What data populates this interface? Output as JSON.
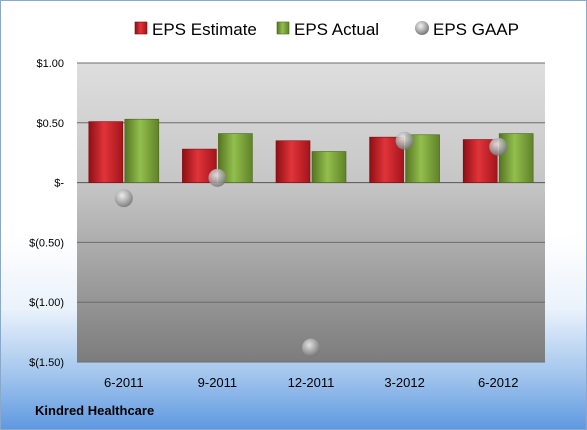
{
  "company": "Kindred Healthcare",
  "chart_data": {
    "type": "bar",
    "categories": [
      "6-2011",
      "9-2011",
      "12-2011",
      "3-2012",
      "6-2012"
    ],
    "series": [
      {
        "name": "EPS Estimate",
        "kind": "bar",
        "color": "#cc2027",
        "values": [
          0.51,
          0.28,
          0.35,
          0.38,
          0.36
        ]
      },
      {
        "name": "EPS Actual",
        "kind": "bar",
        "color": "#7aa33a",
        "values": [
          0.53,
          0.41,
          0.26,
          0.4,
          0.41
        ]
      },
      {
        "name": "EPS GAAP",
        "kind": "marker",
        "color": "#9a9a9a",
        "values": [
          -0.13,
          0.04,
          -1.38,
          0.35,
          0.3
        ]
      }
    ],
    "ylim": [
      -1.5,
      1.0
    ],
    "yticks": [
      1.0,
      0.5,
      0.0,
      -0.5,
      -1.0,
      -1.5
    ],
    "ytick_labels": [
      "$1.00",
      "$0.50",
      "$-",
      "$(0.50)",
      "$(1.00)",
      "$(1.50)"
    ],
    "legend": "top",
    "grid": true
  }
}
